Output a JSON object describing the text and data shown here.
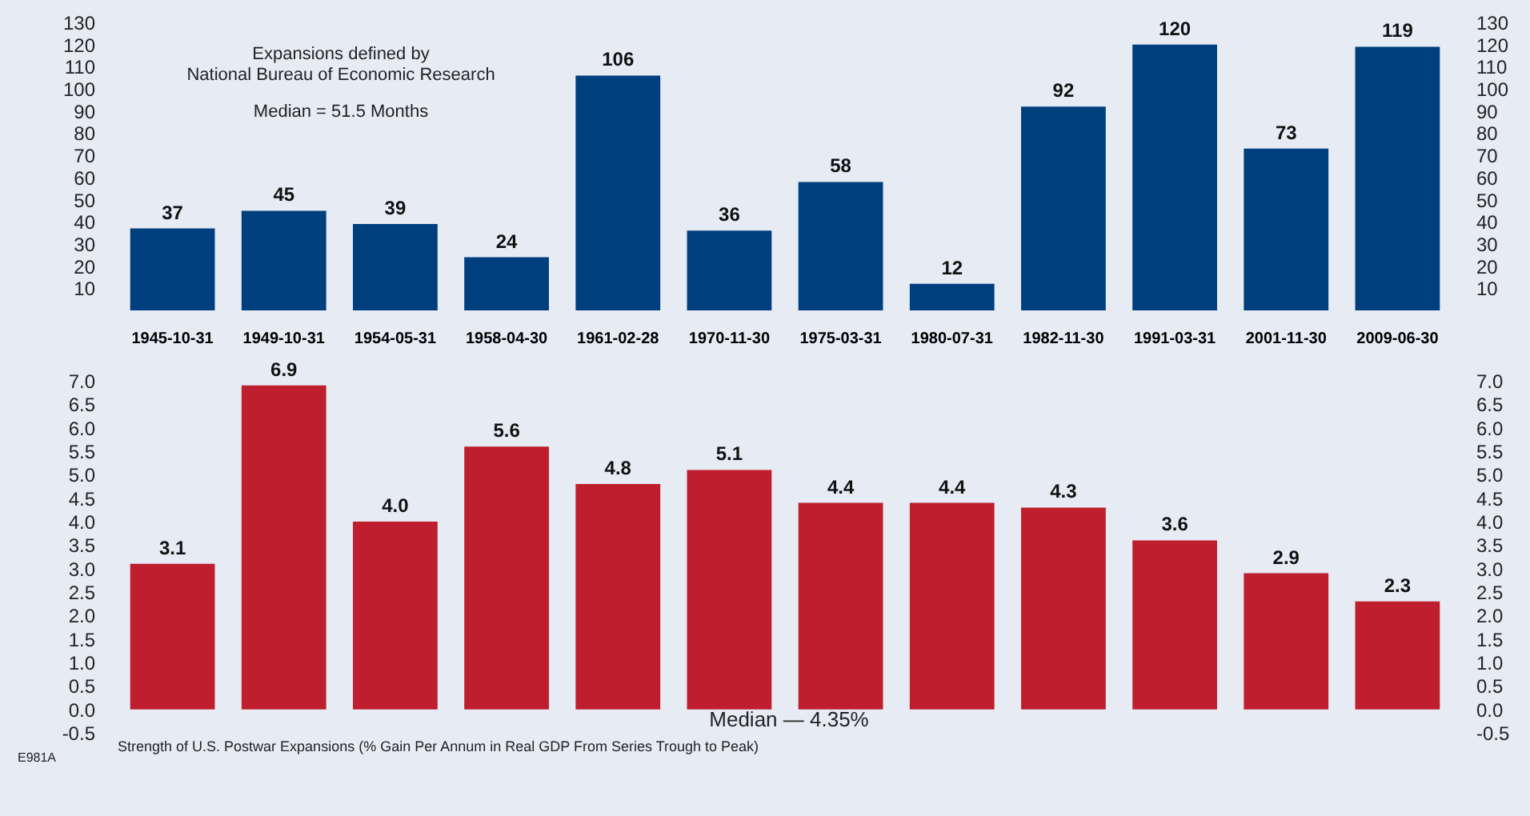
{
  "chart_data": [
    {
      "type": "bar",
      "categories": [
        "1945-10-31",
        "1949-10-31",
        "1954-05-31",
        "1958-04-30",
        "1961-02-28",
        "1970-11-30",
        "1975-03-31",
        "1980-07-31",
        "1982-11-30",
        "1991-03-31",
        "2001-11-30",
        "2009-06-30"
      ],
      "values": [
        37,
        45,
        39,
        24,
        106,
        36,
        58,
        12,
        92,
        120,
        73,
        119
      ],
      "value_labels": [
        "37",
        "45",
        "39",
        "24",
        "106",
        "36",
        "58",
        "12",
        "92",
        "120",
        "73",
        "119"
      ],
      "color": "#003f7d",
      "ylim": [
        0,
        130
      ],
      "yticks": [
        10,
        20,
        30,
        40,
        50,
        60,
        70,
        80,
        90,
        100,
        110,
        120,
        130
      ],
      "y2lim": [
        0,
        130
      ],
      "y2ticks": [
        10,
        20,
        30,
        40,
        50,
        60,
        70,
        80,
        90,
        100,
        110,
        120,
        130
      ],
      "annotations": [
        "Expansions defined by\nNational Bureau of Economic Research",
        "Median = 51.5 Months"
      ]
    },
    {
      "type": "bar",
      "categories": [
        null,
        null,
        null,
        null,
        null,
        null,
        null,
        null,
        null,
        null,
        null,
        null
      ],
      "values": [
        3.1,
        6.9,
        4.0,
        5.6,
        4.8,
        5.1,
        4.4,
        4.4,
        4.3,
        3.6,
        2.9,
        2.3
      ],
      "value_labels": [
        "3.1",
        "6.9",
        "4.0",
        "5.6",
        "4.8",
        "5.1",
        "4.4",
        "4.4",
        "4.3",
        "3.6",
        "2.9",
        "2.3"
      ],
      "color": "#be1e2d",
      "xlabel": "Strength of U.S. Postwar Expansions (% Gain Per Annum in Real GDP From Series Trough to Peak)",
      "ylim": [
        -0.5,
        7.0
      ],
      "yticks": [
        -0.5,
        {
          "value": 0,
          "label": "0.0"
        },
        0.5,
        {
          "value": 1,
          "label": "1.0"
        },
        1.5,
        {
          "value": 2,
          "label": "2.0"
        },
        2.5,
        {
          "value": 3,
          "label": "3.0"
        },
        3.5,
        {
          "value": 4,
          "label": "4.0"
        },
        4.5,
        {
          "value": 5,
          "label": "5.0"
        },
        5.5,
        {
          "value": 6,
          "label": "6.0"
        },
        6.5,
        {
          "value": 7,
          "label": "7.0"
        }
      ],
      "y2lim": [
        -0.5,
        7.0
      ],
      "y2ticks": [
        -0.5,
        {
          "value": 0,
          "label": "0.0"
        },
        0.5,
        {
          "value": 1,
          "label": "1.0"
        },
        1.5,
        {
          "value": 2,
          "label": "2.0"
        },
        2.5,
        {
          "value": 3,
          "label": "3.0"
        },
        3.5,
        {
          "value": 4,
          "label": "4.0"
        },
        4.5,
        {
          "value": 5,
          "label": "5.0"
        },
        5.5,
        {
          "value": 6,
          "label": "6.0"
        },
        6.5,
        {
          "value": 7,
          "label": "7.0"
        }
      ],
      "tick_labels": "y",
      "annotations": [
        "Median — 4.35%",
        "E981A"
      ]
    }
  ]
}
